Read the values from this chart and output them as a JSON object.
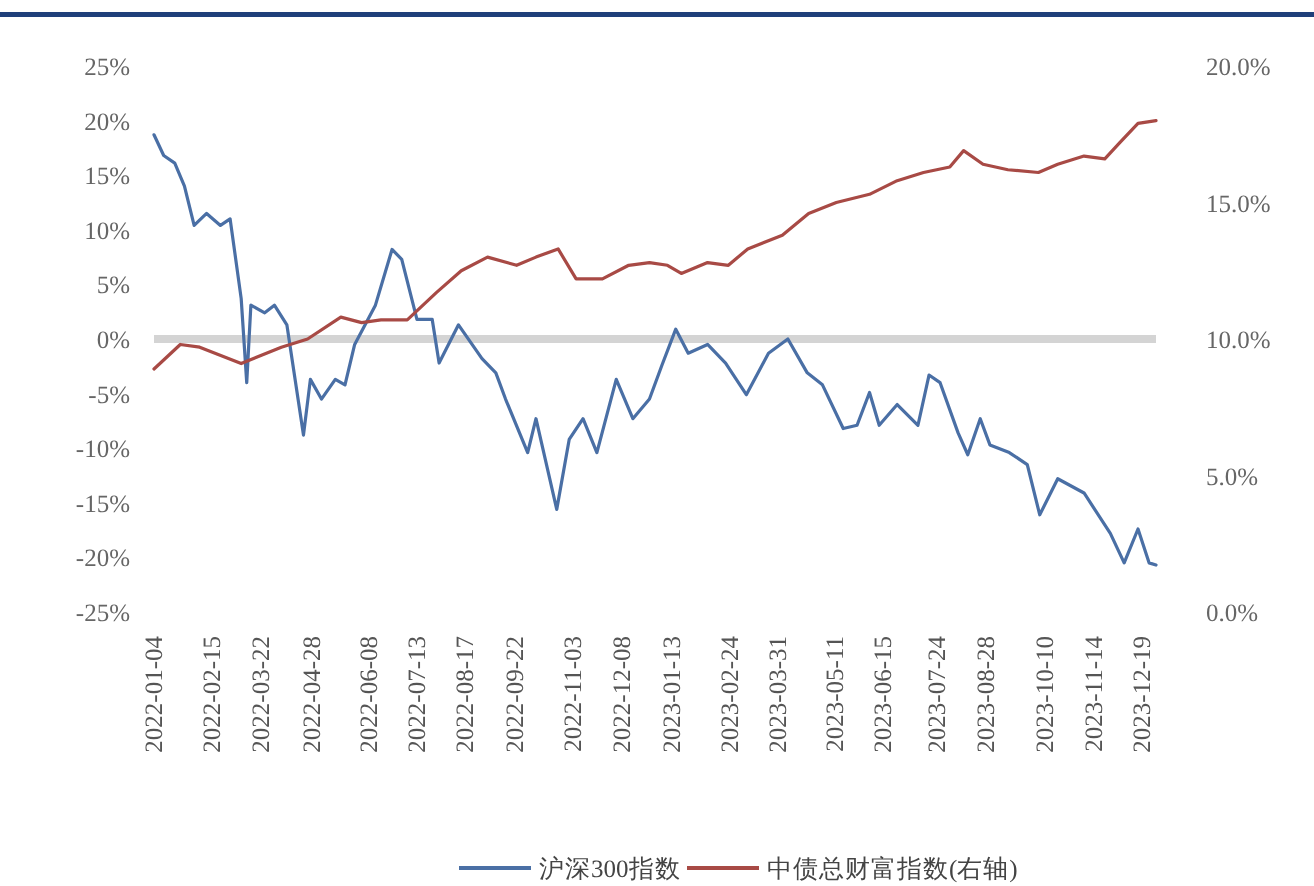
{
  "chart_data": {
    "type": "line",
    "xlim": [
      "2022-01-04",
      "2023-12-29"
    ],
    "xticks": [
      {
        "value": "2022-01-04",
        "label": "2022-01-04"
      },
      {
        "value": "2022-02-15",
        "label": "2022-02-15"
      },
      {
        "value": "2022-03-22",
        "label": "2022-03-22"
      },
      {
        "value": "2022-04-28",
        "label": "2022-04-28"
      },
      {
        "value": "2022-06-08",
        "label": "2022-06-08"
      },
      {
        "value": "2022-07-13",
        "label": "2022-07-13"
      },
      {
        "value": "2022-08-17",
        "label": "2022-08-17"
      },
      {
        "value": "2022-09-22",
        "label": "2022-09-22"
      },
      {
        "value": "2022-11-03",
        "label": "2022-11-03"
      },
      {
        "value": "2022-12-08",
        "label": "2022-12-08"
      },
      {
        "value": "2023-01-13",
        "label": "2023-01-13"
      },
      {
        "value": "2023-02-24",
        "label": "2023-02-24"
      },
      {
        "value": "2023-03-31",
        "label": "2023-03-31"
      },
      {
        "value": "2023-05-11",
        "label": "2023-05-11"
      },
      {
        "value": "2023-06-15",
        "label": "2023-06-15"
      },
      {
        "value": "2023-07-24",
        "label": "2023-07-24"
      },
      {
        "value": "2023-08-28",
        "label": "2023-08-28"
      },
      {
        "value": "2023-10-10",
        "label": "2023-10-10"
      },
      {
        "value": "2023-11-14",
        "label": "2023-11-14"
      },
      {
        "value": "2023-12-19",
        "label": "2023-12-19"
      }
    ],
    "ylim": [
      -25,
      25
    ],
    "yticks": [
      {
        "value": -25,
        "label": "-25%"
      },
      {
        "value": -20,
        "label": "-20%"
      },
      {
        "value": -15,
        "label": "-15%"
      },
      {
        "value": -10,
        "label": "-10%"
      },
      {
        "value": -5,
        "label": "-5%"
      },
      {
        "value": 0,
        "label": "0%"
      },
      {
        "value": 5,
        "label": "5%"
      },
      {
        "value": 10,
        "label": "10%"
      },
      {
        "value": 15,
        "label": "15%"
      },
      {
        "value": 20,
        "label": "20%"
      },
      {
        "value": 25,
        "label": "25%"
      }
    ],
    "y2lim": [
      0,
      20
    ],
    "y2ticks": [
      {
        "value": 0,
        "label": "0.0%"
      },
      {
        "value": 5,
        "label": "5.0%"
      },
      {
        "value": 10,
        "label": "10.0%"
      },
      {
        "value": 15,
        "label": "15.0%"
      },
      {
        "value": 20,
        "label": "20.0%"
      }
    ],
    "ref_lines": [
      {
        "axis": "y",
        "value": 0,
        "color": "#d4d4d4"
      }
    ],
    "legend": "bottom",
    "marker": "none",
    "line_style": "solid",
    "series": [
      {
        "name": "沪深300指数",
        "color": "#4a6fa5",
        "x": [
          "2022-01-04",
          "2022-01-11",
          "2022-01-19",
          "2022-01-26",
          "2022-02-02",
          "2022-02-11",
          "2022-02-21",
          "2022-02-28",
          "2022-03-08",
          "2022-03-12",
          "2022-03-15",
          "2022-03-25",
          "2022-04-01",
          "2022-04-10",
          "2022-04-22",
          "2022-04-27",
          "2022-05-05",
          "2022-05-15",
          "2022-05-22",
          "2022-05-29",
          "2022-06-13",
          "2022-06-25",
          "2022-07-02",
          "2022-07-13",
          "2022-07-24",
          "2022-07-29",
          "2022-08-12",
          "2022-08-29",
          "2022-09-08",
          "2022-09-15",
          "2022-10-01",
          "2022-10-07",
          "2022-10-22",
          "2022-10-31",
          "2022-11-10",
          "2022-11-20",
          "2022-12-04",
          "2022-12-16",
          "2022-12-28",
          "2023-01-06",
          "2023-01-16",
          "2023-01-25",
          "2023-02-08",
          "2023-02-21",
          "2023-03-08",
          "2023-03-24",
          "2023-04-07",
          "2023-04-21",
          "2023-05-02",
          "2023-05-17",
          "2023-05-27",
          "2023-06-05",
          "2023-06-12",
          "2023-06-25",
          "2023-07-10",
          "2023-07-18",
          "2023-07-26",
          "2023-08-08",
          "2023-08-15",
          "2023-08-24",
          "2023-08-31",
          "2023-09-14",
          "2023-09-27",
          "2023-10-06",
          "2023-10-19",
          "2023-11-07",
          "2023-11-26",
          "2023-12-06",
          "2023-12-16",
          "2023-12-24",
          "2023-12-29"
        ],
        "values": [
          18.7,
          16.8,
          16.1,
          14,
          10.4,
          11.5,
          10.4,
          11,
          3.7,
          -4,
          3.1,
          2.4,
          3.1,
          1.3,
          -8.8,
          -3.7,
          -5.5,
          -3.7,
          -4.2,
          -0.5,
          3.1,
          8.2,
          7.3,
          1.8,
          1.8,
          -2.2,
          1.3,
          -1.8,
          -3.1,
          -5.5,
          -10.4,
          -7.3,
          -15.6,
          -9.2,
          -7.3,
          -10.4,
          -3.7,
          -7.3,
          -5.5,
          -2.4,
          0.9,
          -1.3,
          -0.5,
          -2.2,
          -5.1,
          -1.3,
          0,
          -3.1,
          -4.2,
          -8.2,
          -7.9,
          -4.9,
          -7.9,
          -6,
          -7.9,
          -3.3,
          -4,
          -8.6,
          -10.6,
          -7.3,
          -9.7,
          -10.4,
          -11.5,
          -16.1,
          -12.8,
          -14.1,
          -17.8,
          -20.5,
          -17.4,
          -20.5,
          -20.7
        ]
      },
      {
        "name": "中债总财富指数(右轴)",
        "color": "#a84a45",
        "axis": "y2",
        "x": [
          "2022-01-04",
          "2022-01-23",
          "2022-02-06",
          "2022-03-08",
          "2022-04-06",
          "2022-04-25",
          "2022-05-19",
          "2022-06-03",
          "2022-06-17",
          "2022-07-06",
          "2022-07-27",
          "2022-08-14",
          "2022-09-02",
          "2022-09-23",
          "2022-10-07",
          "2022-10-23",
          "2022-11-05",
          "2022-11-24",
          "2022-12-13",
          "2022-12-28",
          "2023-01-10",
          "2023-01-20",
          "2023-02-08",
          "2023-02-23",
          "2023-03-09",
          "2023-04-03",
          "2023-04-22",
          "2023-05-12",
          "2023-06-05",
          "2023-06-25",
          "2023-07-14",
          "2023-08-02",
          "2023-08-12",
          "2023-08-26",
          "2023-09-13",
          "2023-10-05",
          "2023-10-19",
          "2023-11-07",
          "2023-11-22",
          "2023-12-03",
          "2023-12-16",
          "2023-12-29"
        ],
        "values": [
          8.9,
          9.8,
          9.7,
          9.1,
          9.7,
          10,
          10.8,
          10.6,
          10.7,
          10.7,
          11.7,
          12.5,
          13,
          12.7,
          13,
          13.3,
          12.2,
          12.2,
          12.7,
          12.8,
          12.7,
          12.4,
          12.8,
          12.7,
          13.3,
          13.8,
          14.6,
          15,
          15.3,
          15.8,
          16.1,
          16.3,
          16.9,
          16.4,
          16.2,
          16.1,
          16.4,
          16.7,
          16.6,
          17.2,
          17.9,
          18
        ]
      }
    ]
  }
}
